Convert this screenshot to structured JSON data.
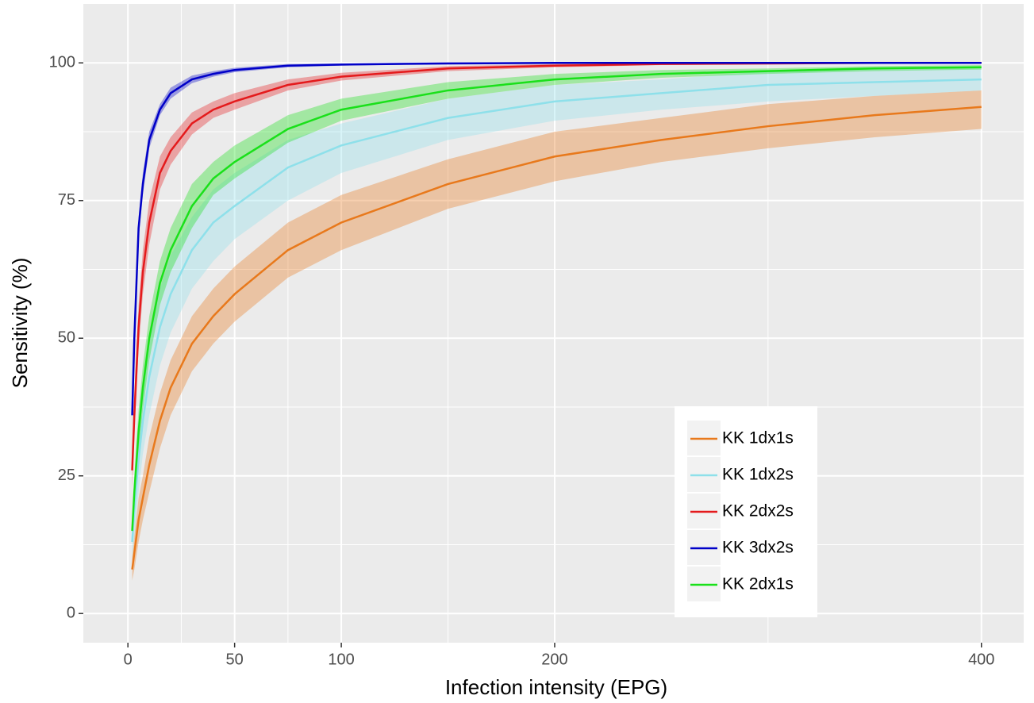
{
  "chart_data": {
    "type": "line",
    "x_label": "Infection intensity (EPG)",
    "y_label": "Sensitivity (%)",
    "x": [
      2,
      3,
      5,
      7,
      10,
      15,
      20,
      30,
      40,
      50,
      75,
      100,
      150,
      200,
      250,
      300,
      350,
      400
    ],
    "xlim": [
      -20.9,
      419.8
    ],
    "ylim": [
      -5.3,
      110.7
    ],
    "xticks": [
      0,
      50,
      100,
      200,
      400
    ],
    "xminor": [
      25,
      75,
      150,
      300
    ],
    "yticks": [
      0,
      25,
      50,
      75,
      100
    ],
    "yminor": [
      12.5,
      37.5,
      62.5,
      87.5
    ],
    "grid": true,
    "legend": "bottom-right",
    "series": [
      {
        "name": "KK 1dx1s",
        "color": "#e8791c",
        "values": [
          8,
          11,
          17,
          21,
          27,
          35,
          41,
          49,
          54,
          58,
          66,
          71,
          78,
          83,
          86,
          88.5,
          90.5,
          92
        ],
        "lower": [
          6,
          8,
          13,
          17,
          22,
          30,
          36,
          44,
          49,
          53,
          61,
          66,
          73.5,
          78.5,
          82,
          84.5,
          86.5,
          88
        ],
        "upper": [
          10,
          14,
          21,
          25,
          32,
          40,
          46,
          54,
          59,
          63,
          71,
          76,
          82.5,
          87.5,
          90,
          92.5,
          94,
          95
        ]
      },
      {
        "name": "KK 1dx2s",
        "color": "#8ee0ea",
        "values": [
          13,
          19,
          28,
          35,
          43,
          52,
          58,
          66,
          71,
          74,
          81,
          85,
          90,
          93,
          94.5,
          96,
          96.5,
          97
        ],
        "lower": [
          10,
          14,
          22,
          29,
          36,
          45,
          51,
          59,
          64,
          68,
          75,
          80,
          86,
          89.5,
          91.5,
          93,
          94,
          95
        ],
        "upper": [
          16,
          24,
          34,
          41,
          50,
          59,
          65,
          72,
          77,
          80,
          86,
          89,
          93.5,
          96,
          97,
          98.5,
          98.8,
          99
        ]
      },
      {
        "name": "KK 2dx2s",
        "color": "#e41a1c",
        "values": [
          26,
          36,
          52,
          62,
          71,
          80,
          84,
          89,
          91.5,
          93,
          96,
          97.5,
          99,
          99.5,
          99.8,
          99.9,
          100,
          100
        ],
        "lower": [
          23,
          32,
          48,
          58,
          67,
          77,
          81.5,
          87,
          90,
          91.5,
          95,
          96.8,
          98.5,
          99.2,
          99.6,
          99.8,
          99.9,
          99.9
        ],
        "upper": [
          29,
          40,
          56,
          66,
          75,
          83,
          86.5,
          91,
          93,
          94.5,
          97,
          98.2,
          99.4,
          99.8,
          100,
          100.1,
          100.2,
          100.2
        ]
      },
      {
        "name": "KK 3dx2s",
        "color": "#0000c8",
        "values": [
          36,
          50,
          70,
          78,
          86,
          91.5,
          94.5,
          97,
          98,
          98.7,
          99.5,
          99.7,
          99.9,
          100,
          100,
          100,
          100,
          100
        ],
        "lower": [
          34,
          48,
          68,
          76,
          84.5,
          90.5,
          93.5,
          96.3,
          97.5,
          98.3,
          99.2,
          99.5,
          99.8,
          99.9,
          99.9,
          99.9,
          99.9,
          99.9
        ],
        "upper": [
          38,
          52,
          72,
          80,
          87.5,
          92.5,
          95.5,
          97.7,
          98.5,
          99.1,
          99.8,
          99.9,
          100.1,
          100.1,
          100.1,
          100.1,
          100.1,
          100.1
        ]
      },
      {
        "name": "KK 2dx1s",
        "color": "#1ae01a",
        "values": [
          15,
          22,
          33,
          41,
          50,
          60,
          66,
          74,
          79,
          82,
          88,
          91.5,
          95,
          97,
          98,
          98.5,
          99,
          99.2
        ],
        "lower": [
          13,
          19,
          29,
          37,
          46,
          56,
          62,
          70,
          76,
          79,
          85.5,
          89.5,
          93.5,
          96,
          97.3,
          98,
          98.5,
          98.8
        ],
        "upper": [
          17,
          25,
          37,
          45,
          54,
          64,
          70,
          78,
          82,
          85,
          90.5,
          93.5,
          96.5,
          98,
          98.7,
          99,
          99.4,
          99.6
        ]
      }
    ]
  }
}
